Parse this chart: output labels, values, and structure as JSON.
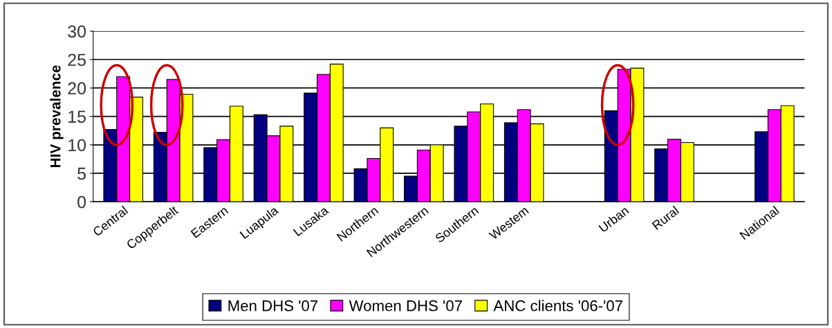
{
  "chart_data": {
    "type": "bar",
    "ylabel": "HIV prevalence",
    "categories": [
      "Central",
      "Copperbelt",
      "Eastern",
      "Luapula",
      "Lusaka",
      "Northern",
      "Northwestern",
      "Southern",
      "Westem",
      null,
      "Urban",
      "Rural",
      null,
      "National"
    ],
    "series": [
      {
        "name": "Men DHS '07",
        "color": "#000080",
        "values": [
          12.7,
          12.2,
          9.5,
          15.3,
          19.1,
          5.8,
          4.5,
          13.3,
          13.9,
          null,
          16.0,
          9.3,
          null,
          12.3
        ]
      },
      {
        "name": "Women DHS '07",
        "color": "#ff00ff",
        "values": [
          22.0,
          21.5,
          10.9,
          11.6,
          22.4,
          7.6,
          9.1,
          15.8,
          16.2,
          null,
          23.3,
          11.0,
          null,
          16.2
        ]
      },
      {
        "name": "ANC clients '06-'07",
        "color": "#ffff00",
        "values": [
          18.4,
          18.9,
          16.8,
          13.3,
          24.2,
          13.0,
          10.0,
          17.2,
          13.7,
          null,
          23.5,
          10.4,
          null,
          16.9
        ]
      }
    ],
    "ylim": [
      0,
      30
    ],
    "yticks": [
      0,
      5,
      10,
      15,
      20,
      25,
      30
    ],
    "grid": "y",
    "legend": "bottom"
  }
}
